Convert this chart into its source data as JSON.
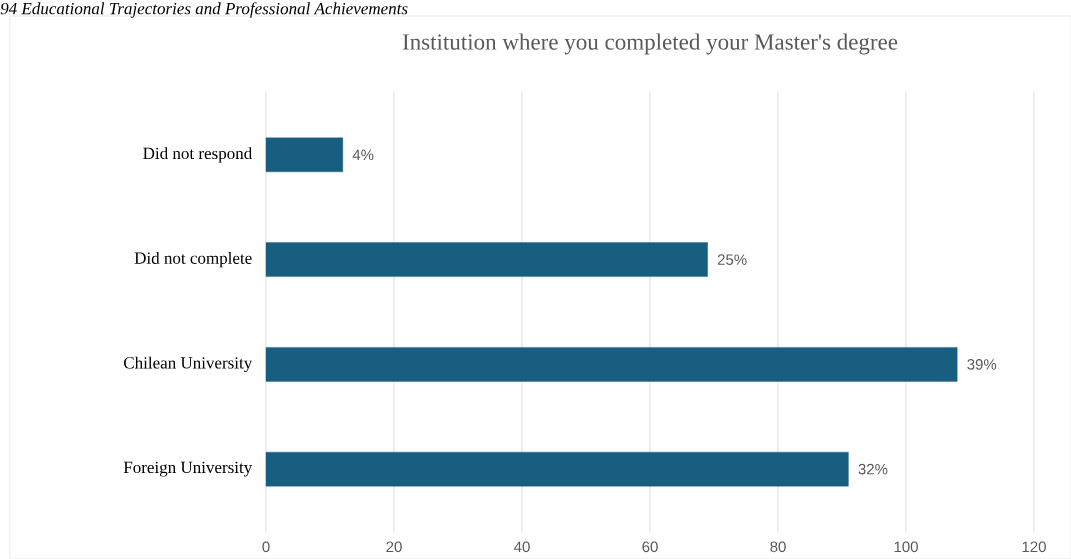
{
  "chart_data": {
    "type": "bar",
    "orientation": "horizontal",
    "title": "Institution where you completed your Master's degree",
    "annotations": [
      "94 Educational Trajectories and Professional Achievements",
      {
        "text": "4%",
        "x": 12,
        "y": "Did not respond"
      },
      {
        "text": "25%",
        "x": 69,
        "y": "Did not complete"
      },
      {
        "text": "39%",
        "x": 108,
        "y": "Chilean University"
      },
      {
        "text": "32%",
        "x": 91,
        "y": "Foreign University"
      }
    ],
    "categories": [
      "Did not respond",
      "Did not complete",
      "Chilean University",
      "Foreign University"
    ],
    "values": [
      12,
      69,
      108,
      91
    ],
    "color": "#175e81",
    "xlim": [
      0,
      120
    ],
    "xticks": [
      0,
      20,
      40,
      60,
      80,
      100,
      120
    ],
    "grid": "x"
  }
}
